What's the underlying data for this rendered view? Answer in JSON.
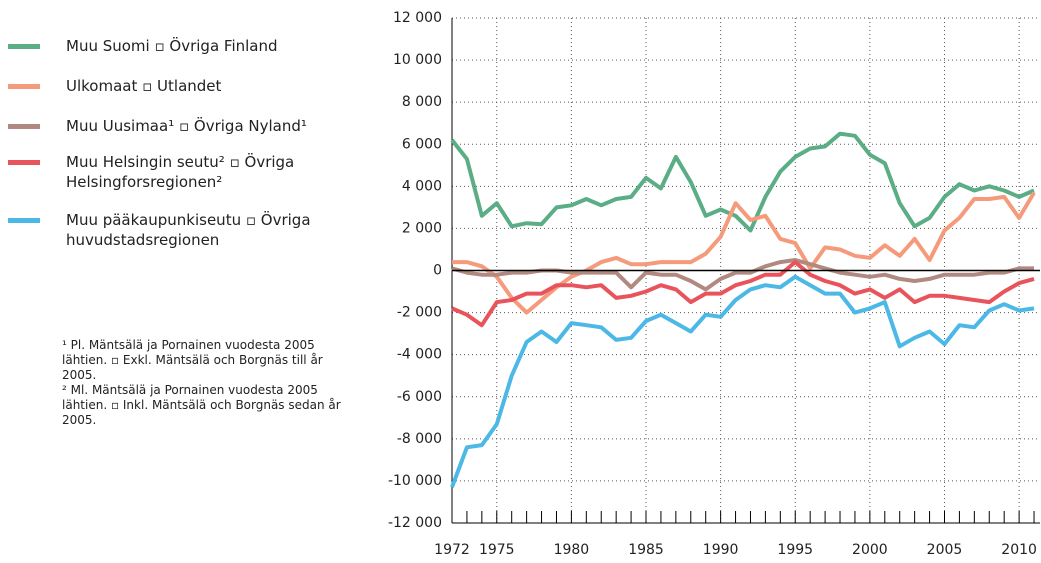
{
  "chart_data": {
    "type": "line",
    "x": [
      1972,
      1973,
      1974,
      1975,
      1976,
      1977,
      1978,
      1979,
      1980,
      1981,
      1982,
      1983,
      1984,
      1985,
      1986,
      1987,
      1988,
      1989,
      1990,
      1991,
      1992,
      1993,
      1994,
      1995,
      1996,
      1997,
      1998,
      1999,
      2000,
      2001,
      2002,
      2003,
      2004,
      2005,
      2006,
      2007,
      2008,
      2009,
      2010,
      2011
    ],
    "series": [
      {
        "name": "Muu Suomi ▫ Övriga Finland",
        "color": "#5aad84",
        "values": [
          6200,
          5300,
          2600,
          3200,
          2100,
          2250,
          2200,
          3000,
          3100,
          3400,
          3100,
          3400,
          3500,
          4400,
          3900,
          5400,
          4200,
          2600,
          2900,
          2600,
          1900,
          3500,
          4700,
          5400,
          5800,
          5900,
          6500,
          6400,
          5500,
          5100,
          3200,
          2100,
          2500,
          3500,
          4100,
          3800,
          4000,
          3800,
          3500,
          3800
        ]
      },
      {
        "name": "Ulkomaat ▫ Utlandet",
        "color": "#f59b7b",
        "values": [
          400,
          400,
          200,
          -300,
          -1300,
          -2000,
          -1400,
          -800,
          -300,
          0,
          400,
          600,
          300,
          300,
          400,
          400,
          400,
          800,
          1600,
          3200,
          2400,
          2600,
          1500,
          1300,
          100,
          1100,
          1000,
          700,
          600,
          1200,
          700,
          1500,
          500,
          1900,
          2500,
          3400,
          3400,
          3500,
          2500,
          3700
        ]
      },
      {
        "name": "Muu Uusimaa¹ ▫ Övriga Nyland¹",
        "color": "#b08a80",
        "values": [
          100,
          -100,
          -200,
          -200,
          -100,
          -100,
          0,
          0,
          -100,
          -100,
          -100,
          -100,
          -800,
          -100,
          -200,
          -200,
          -500,
          -900,
          -400,
          -100,
          -100,
          200,
          400,
          500,
          300,
          100,
          -100,
          -200,
          -300,
          -200,
          -400,
          -500,
          -400,
          -200,
          -200,
          -200,
          -100,
          -100,
          100,
          100
        ]
      },
      {
        "name": "Muu Helsingin seutu² ▫ Övriga Helsingforsregionen²",
        "color": "#e9545c",
        "values": [
          -1800,
          -2100,
          -2600,
          -1500,
          -1400,
          -1100,
          -1100,
          -700,
          -700,
          -800,
          -700,
          -1300,
          -1200,
          -1000,
          -700,
          -900,
          -1500,
          -1100,
          -1100,
          -700,
          -500,
          -200,
          -200,
          400,
          -200,
          -500,
          -700,
          -1100,
          -900,
          -1300,
          -900,
          -1500,
          -1200,
          -1200,
          -1300,
          -1400,
          -1500,
          -1000,
          -600,
          -400
        ]
      },
      {
        "name": "Muu pääkaupunkiseutu ▫ Övriga huvudstadsregionen",
        "color": "#4cb8e6",
        "values": [
          -10300,
          -8400,
          -8300,
          -7300,
          -5000,
          -3400,
          -2900,
          -3400,
          -2500,
          -2600,
          -2700,
          -3300,
          -3200,
          -2400,
          -2100,
          -2500,
          -2900,
          -2100,
          -2200,
          -1400,
          -900,
          -700,
          -800,
          -300,
          -700,
          -1100,
          -1100,
          -2000,
          -1800,
          -1500,
          -3600,
          -3200,
          -2900,
          -3500,
          -2600,
          -2700,
          -1900,
          -1600,
          -1900,
          -1800
        ]
      }
    ],
    "xlim": [
      1972,
      2011.4
    ],
    "xticks": [
      1972,
      1975,
      1980,
      1985,
      1990,
      1995,
      2000,
      2005,
      2010
    ],
    "ylim": [
      -12000,
      12000
    ],
    "yticks": [
      {
        "value": -12000,
        "label": "-12 000"
      },
      {
        "value": -10000,
        "label": "-10 000"
      },
      {
        "value": -8000,
        "label": "-8 000"
      },
      {
        "value": -6000,
        "label": "-6 000"
      },
      {
        "value": -4000,
        "label": "-4 000"
      },
      {
        "value": -2000,
        "label": "-2 000"
      },
      0,
      {
        "value": 2000,
        "label": "2 000"
      },
      {
        "value": 4000,
        "label": "4 000"
      },
      {
        "value": 6000,
        "label": "6 000"
      },
      {
        "value": 8000,
        "label": "8 000"
      },
      {
        "value": 10000,
        "label": "10 000"
      },
      {
        "value": 12000,
        "label": "12 000"
      }
    ],
    "grid": true,
    "notes": [
      "¹ Pl. Mäntsälä ja Pornainen vuodesta 2005 lähtien. ▫ Exkl. Mäntsälä och Borgnäs till år 2005.",
      "² Ml. Mäntsälä ja Pornainen vuodesta 2005 lähtien. ▫ Inkl. Mäntsälä och Borgnäs sedan år 2005."
    ]
  }
}
